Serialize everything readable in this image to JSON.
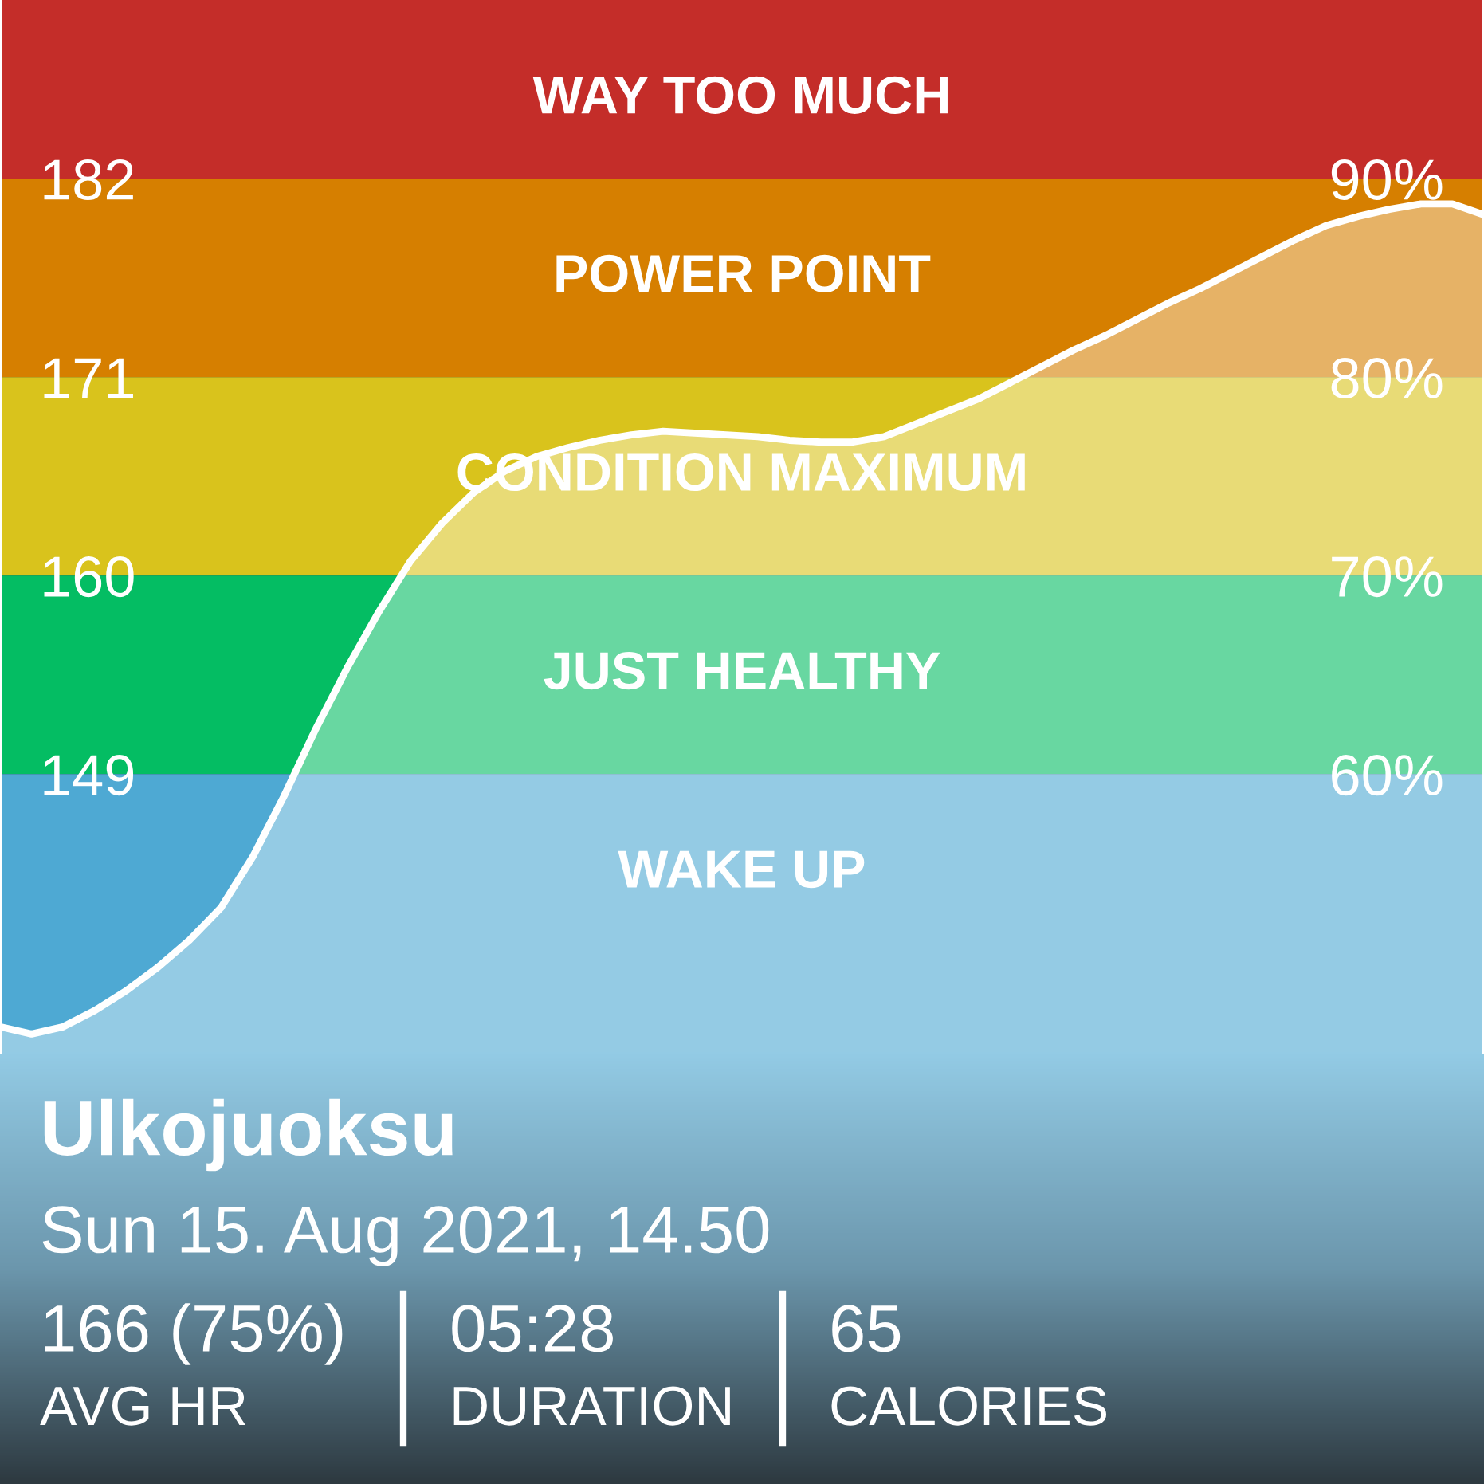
{
  "chart_data": {
    "type": "area",
    "title": "Ulkojuoksu",
    "subtitle": "Sun 15. Aug 2021, 14.50",
    "annotations": [
      "166 (75%)",
      "AVG HR",
      "05:28",
      "DURATION",
      "65",
      "CALORIES"
    ],
    "categories": [
      null,
      null,
      null,
      null,
      null,
      null,
      null,
      null,
      null,
      null,
      null,
      null,
      null,
      null,
      null,
      null,
      null,
      null,
      null,
      null,
      null,
      null,
      null,
      null,
      null,
      null,
      null,
      null,
      null,
      null,
      null,
      null,
      null,
      null,
      null,
      null,
      null,
      null,
      null,
      null,
      null,
      null,
      null,
      null,
      null,
      null,
      null,
      null
    ],
    "values": [
      135.0,
      134.6,
      135.0,
      135.9,
      137.0,
      138.3,
      139.8,
      141.6,
      144.4,
      147.8,
      151.5,
      154.9,
      158.0,
      160.8,
      162.9,
      164.6,
      165.8,
      166.6,
      167.1,
      167.5,
      167.8,
      168.0,
      167.9,
      167.8,
      167.7,
      167.5,
      167.4,
      167.4,
      167.7,
      168.4,
      169.1,
      169.8,
      170.7,
      171.6,
      172.5,
      173.3,
      174.2,
      175.1,
      175.9,
      176.8,
      177.7,
      178.6,
      179.4,
      179.9,
      180.3,
      180.6,
      180.6,
      180.0
    ],
    "color": "#ffffff",
    "ylim": [
      133.6,
      191.9
    ],
    "yticks": [
      149,
      160,
      171,
      182
    ],
    "y2lim": [
      46,
      99
    ],
    "y2ticks": [
      {
        "value": 60,
        "label": "60%"
      },
      {
        "value": 70,
        "label": "70%"
      },
      {
        "value": 80,
        "label": "80%"
      },
      {
        "value": 90,
        "label": "90%"
      }
    ],
    "bands": [
      {
        "axis": "y",
        "from": 182,
        "to": 191.9,
        "label": "WAY TOO MUCH",
        "color": "#c42d29"
      },
      {
        "axis": "y",
        "from": 171,
        "to": 182,
        "label": "POWER POINT",
        "color": "#d67f00"
      },
      {
        "axis": "y",
        "from": 160,
        "to": 171,
        "label": "CONDITION MAXIMUM",
        "color": "#d9c31c"
      },
      {
        "axis": "y",
        "from": 149,
        "to": 160,
        "label": "JUST HEALTHY",
        "color": "#04bd63"
      },
      {
        "axis": "y",
        "from": 133.6,
        "to": 149,
        "label": "WAKE UP",
        "color": "#4ea9d3"
      }
    ]
  }
}
